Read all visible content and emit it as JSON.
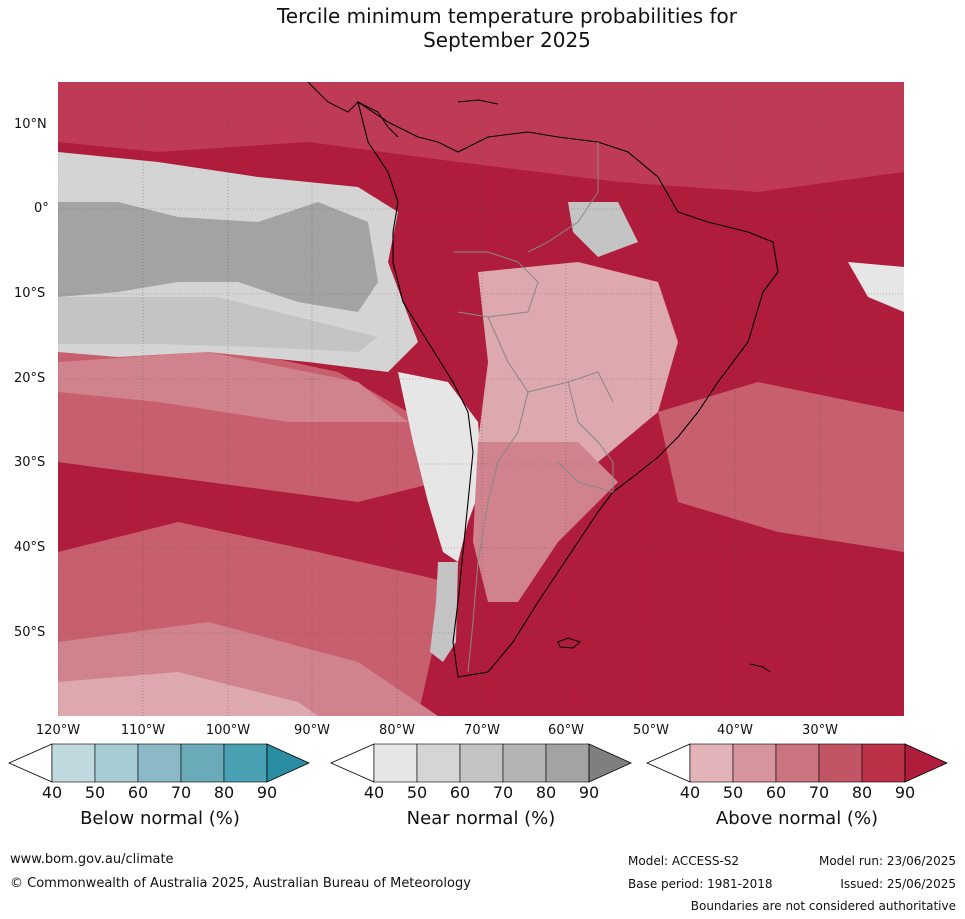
{
  "title_line1": "Tercile minimum temperature probabilities for",
  "title_line2": "September 2025",
  "map": {
    "lat_labels": [
      "10°N",
      "0°",
      "10°S",
      "20°S",
      "30°S",
      "40°S",
      "50°S"
    ],
    "lon_labels": [
      "120°W",
      "110°W",
      "100°W",
      "90°W",
      "80°W",
      "70°W",
      "60°W",
      "50°W",
      "40°W",
      "30°W"
    ],
    "colors": {
      "above_90": "#b01c3b",
      "above_80": "#bf3a55",
      "above_70": "#c75f6f",
      "above_60": "#d1838d",
      "above_50": "#dda8ae",
      "near_40": "#e6e6e6",
      "near_50": "#d4d4d4",
      "near_60": "#c4c4c4",
      "near_70": "#b4b4b4",
      "near_80": "#a3a3a3",
      "land_outline": "#000000",
      "border": "#888888"
    }
  },
  "colorbars": [
    {
      "label": "Below normal (%)",
      "ticks": [
        "40",
        "50",
        "60",
        "70",
        "80",
        "90"
      ],
      "colors": [
        "#ffffff",
        "#c0d9df",
        "#a8ccd4",
        "#8bbac6",
        "#6aaab9",
        "#48a0b2",
        "#2a8ea3"
      ]
    },
    {
      "label": "Near normal (%)",
      "ticks": [
        "40",
        "50",
        "60",
        "70",
        "80",
        "90"
      ],
      "colors": [
        "#ffffff",
        "#e6e6e6",
        "#d5d5d5",
        "#c4c4c4",
        "#b4b4b4",
        "#a3a3a3",
        "#7f7f7f"
      ]
    },
    {
      "label": "Above normal (%)",
      "ticks": [
        "40",
        "50",
        "60",
        "70",
        "80",
        "90"
      ],
      "colors": [
        "#ffffff",
        "#e2b3b8",
        "#d6959c",
        "#ca747f",
        "#c25565",
        "#bb3148",
        "#b01c3b"
      ]
    }
  ],
  "footer": {
    "website": "www.bom.gov.au/climate",
    "copyright": "© Commonwealth of Australia 2025, Australian Bureau of Meteorology",
    "model": "Model: ACCESS-S2",
    "model_run": "Model run: 23/06/2025",
    "base_period": "Base period: 1981-2018",
    "issued": "Issued: 25/06/2025",
    "disclaimer": "Boundaries are not considered authoritative"
  }
}
